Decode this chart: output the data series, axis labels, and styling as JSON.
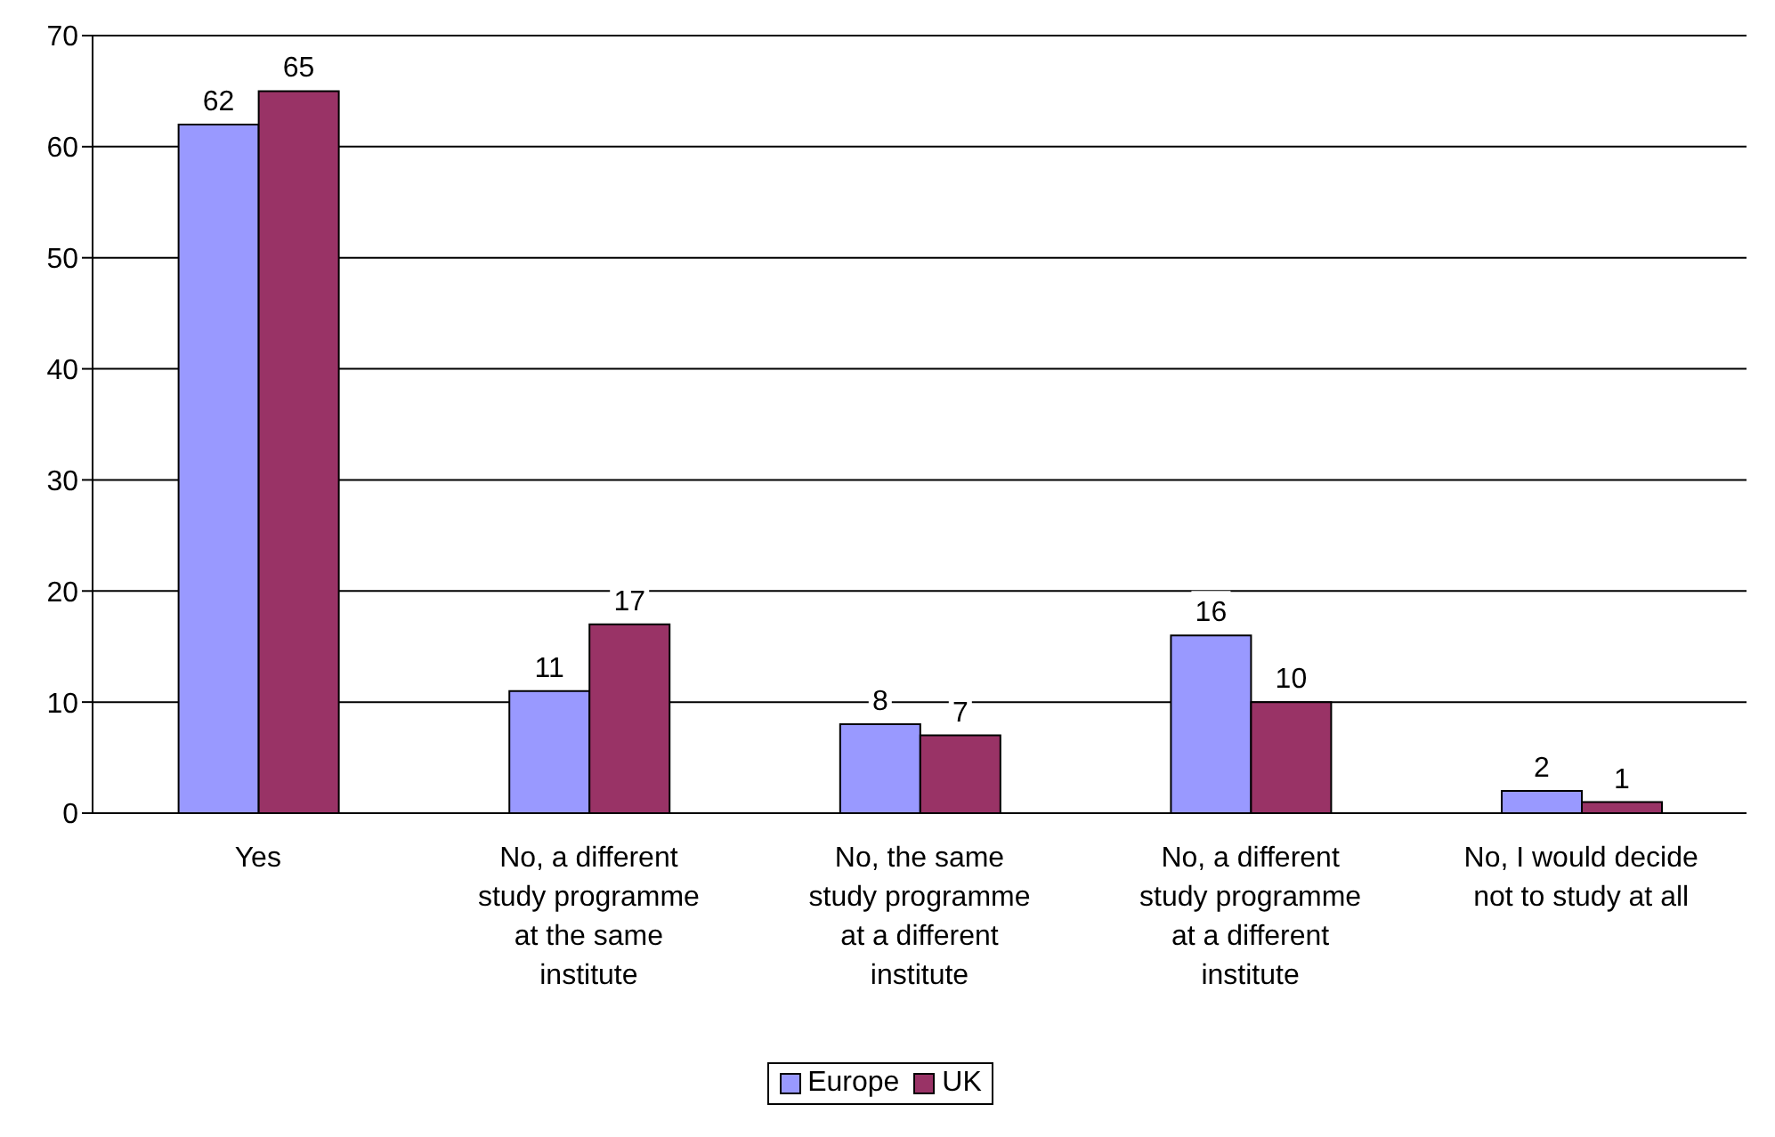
{
  "chart_data": {
    "type": "bar",
    "categories": [
      "Yes",
      "No, a different\nstudy programme\nat the same\ninstitute",
      "No, the same\nstudy programme\nat a different\ninstitute",
      "No, a different\nstudy programme\nat a different\ninstitute",
      "No, I would decide\nnot to study at all"
    ],
    "series": [
      {
        "name": "Europe",
        "color": "#9999ff",
        "values": [
          62,
          11,
          8,
          16,
          2
        ]
      },
      {
        "name": "UK",
        "color": "#993366",
        "values": [
          65,
          17,
          7,
          10,
          1
        ]
      }
    ],
    "ylim": [
      0,
      70
    ],
    "yticks": [
      0,
      10,
      20,
      30,
      40,
      50,
      60,
      70
    ],
    "grid": "y",
    "legend": "bottom",
    "data_labels": true
  }
}
